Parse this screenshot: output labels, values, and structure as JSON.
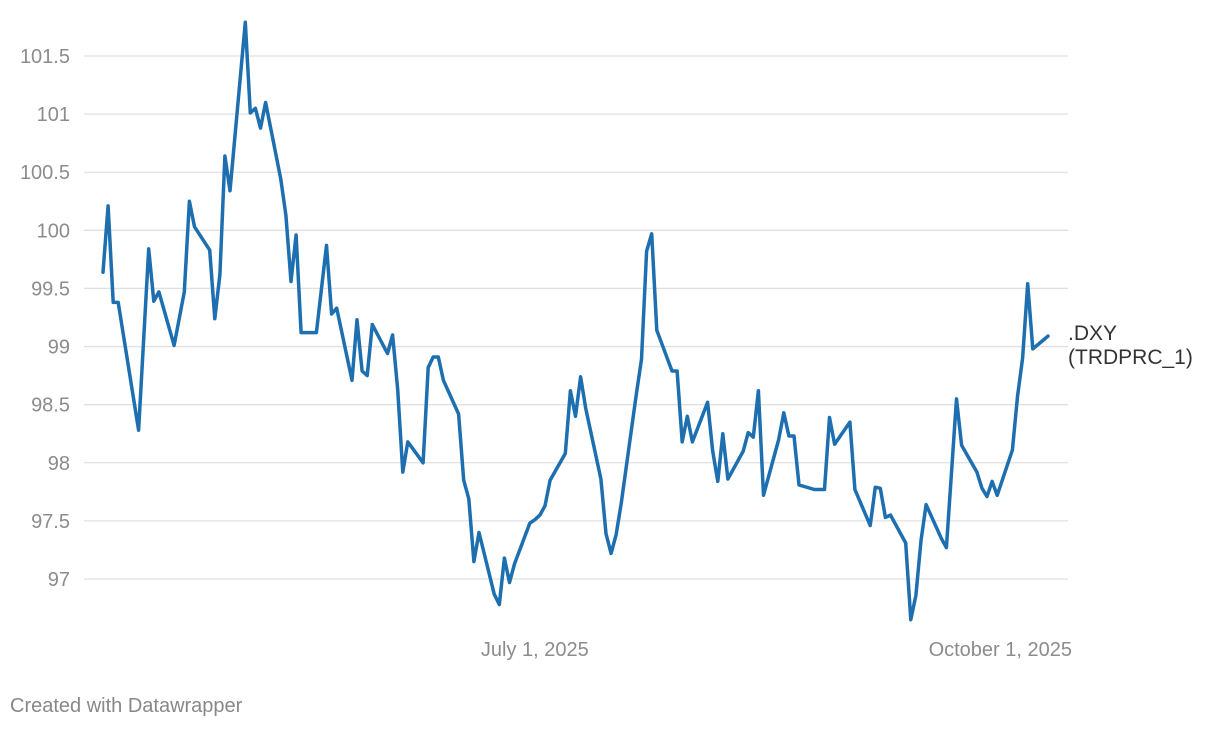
{
  "chart_data": {
    "type": "line",
    "title": "",
    "xlabel": "",
    "ylabel": "",
    "x_ticks": [
      "July 1, 2025",
      "October 1, 2025"
    ],
    "y_ticks": [
      "97",
      "97.5",
      "98",
      "98.5",
      "99",
      "99.5",
      "100",
      "100.5",
      "101",
      "101.5"
    ],
    "ylim": [
      96.7,
      101.85
    ],
    "grid": true,
    "series": [
      {
        "name": ".DXY (TRDPRC_1)",
        "label_lines": [
          ".DXY",
          "(TRDPRC_1)"
        ],
        "color": "#1d6fb0",
        "points": [
          [
            "2025-04-07",
            99.64
          ],
          [
            "2025-04-08",
            100.21
          ],
          [
            "2025-04-09",
            99.38
          ],
          [
            "2025-04-10",
            99.38
          ],
          [
            "2025-04-14",
            98.28
          ],
          [
            "2025-04-16",
            99.84
          ],
          [
            "2025-04-17",
            99.39
          ],
          [
            "2025-04-18",
            99.47
          ],
          [
            "2025-04-21",
            99.01
          ],
          [
            "2025-04-23",
            99.47
          ],
          [
            "2025-04-24",
            100.25
          ],
          [
            "2025-04-25",
            100.03
          ],
          [
            "2025-04-28",
            99.83
          ],
          [
            "2025-04-29",
            99.24
          ],
          [
            "2025-04-30",
            99.62
          ],
          [
            "2025-05-01",
            100.64
          ],
          [
            "2025-05-02",
            100.34
          ],
          [
            "2025-05-05",
            101.79
          ],
          [
            "2025-05-06",
            101.01
          ],
          [
            "2025-05-07",
            101.05
          ],
          [
            "2025-05-08",
            100.88
          ],
          [
            "2025-05-09",
            101.1
          ],
          [
            "2025-05-12",
            100.44
          ],
          [
            "2025-05-13",
            100.13
          ],
          [
            "2025-05-14",
            99.56
          ],
          [
            "2025-05-15",
            99.96
          ],
          [
            "2025-05-16",
            99.12
          ],
          [
            "2025-05-19",
            99.12
          ],
          [
            "2025-05-20",
            99.5
          ],
          [
            "2025-05-21",
            99.87
          ],
          [
            "2025-05-22",
            99.28
          ],
          [
            "2025-05-23",
            99.33
          ],
          [
            "2025-05-26",
            98.71
          ],
          [
            "2025-05-27",
            99.23
          ],
          [
            "2025-05-28",
            98.79
          ],
          [
            "2025-05-29",
            98.75
          ],
          [
            "2025-05-30",
            99.19
          ],
          [
            "2025-06-02",
            98.94
          ],
          [
            "2025-06-03",
            99.1
          ],
          [
            "2025-06-04",
            98.63
          ],
          [
            "2025-06-05",
            97.92
          ],
          [
            "2025-06-06",
            98.18
          ],
          [
            "2025-06-09",
            98.0
          ],
          [
            "2025-06-10",
            98.82
          ],
          [
            "2025-06-11",
            98.91
          ],
          [
            "2025-06-12",
            98.91
          ],
          [
            "2025-06-13",
            98.71
          ],
          [
            "2025-06-16",
            98.42
          ],
          [
            "2025-06-17",
            97.85
          ],
          [
            "2025-06-18",
            97.69
          ],
          [
            "2025-06-19",
            97.15
          ],
          [
            "2025-06-20",
            97.4
          ],
          [
            "2025-06-23",
            96.87
          ],
          [
            "2025-06-24",
            96.78
          ],
          [
            "2025-06-25",
            97.18
          ],
          [
            "2025-06-26",
            96.97
          ],
          [
            "2025-06-27",
            97.13
          ],
          [
            "2025-06-30",
            97.48
          ],
          [
            "2025-07-01",
            97.51
          ],
          [
            "2025-07-02",
            97.55
          ],
          [
            "2025-07-03",
            97.63
          ],
          [
            "2025-07-04",
            97.85
          ],
          [
            "2025-07-07",
            98.08
          ],
          [
            "2025-07-08",
            98.62
          ],
          [
            "2025-07-09",
            98.4
          ],
          [
            "2025-07-10",
            98.74
          ],
          [
            "2025-07-11",
            98.47
          ],
          [
            "2025-07-14",
            97.86
          ],
          [
            "2025-07-15",
            97.39
          ],
          [
            "2025-07-16",
            97.22
          ],
          [
            "2025-07-17",
            97.38
          ],
          [
            "2025-07-18",
            97.65
          ],
          [
            "2025-07-21",
            98.6
          ],
          [
            "2025-07-22",
            98.89
          ],
          [
            "2025-07-23",
            99.82
          ],
          [
            "2025-07-24",
            99.97
          ],
          [
            "2025-07-25",
            99.14
          ],
          [
            "2025-07-28",
            98.79
          ],
          [
            "2025-07-29",
            98.79
          ],
          [
            "2025-07-30",
            98.18
          ],
          [
            "2025-07-31",
            98.4
          ],
          [
            "2025-08-01",
            98.18
          ],
          [
            "2025-08-04",
            98.52
          ],
          [
            "2025-08-05",
            98.1
          ],
          [
            "2025-08-06",
            97.84
          ],
          [
            "2025-08-07",
            98.25
          ],
          [
            "2025-08-08",
            97.86
          ],
          [
            "2025-08-11",
            98.1
          ],
          [
            "2025-08-12",
            98.26
          ],
          [
            "2025-08-13",
            98.22
          ],
          [
            "2025-08-14",
            98.62
          ],
          [
            "2025-08-15",
            97.72
          ],
          [
            "2025-08-18",
            98.2
          ],
          [
            "2025-08-19",
            98.43
          ],
          [
            "2025-08-20",
            98.23
          ],
          [
            "2025-08-21",
            98.23
          ],
          [
            "2025-08-22",
            97.81
          ],
          [
            "2025-08-25",
            97.77
          ],
          [
            "2025-08-26",
            97.77
          ],
          [
            "2025-08-27",
            97.77
          ],
          [
            "2025-08-28",
            98.39
          ],
          [
            "2025-08-29",
            98.16
          ],
          [
            "2025-09-01",
            98.35
          ],
          [
            "2025-09-02",
            97.77
          ],
          [
            "2025-09-05",
            97.46
          ],
          [
            "2025-09-06",
            97.79
          ],
          [
            "2025-09-07",
            97.78
          ],
          [
            "2025-09-08",
            97.53
          ],
          [
            "2025-09-09",
            97.55
          ],
          [
            "2025-09-12",
            97.31
          ],
          [
            "2025-09-13",
            96.65
          ],
          [
            "2025-09-14",
            96.86
          ],
          [
            "2025-09-15",
            97.33
          ],
          [
            "2025-09-16",
            97.64
          ],
          [
            "2025-09-19",
            97.35
          ],
          [
            "2025-09-20",
            97.27
          ],
          [
            "2025-09-22",
            98.55
          ],
          [
            "2025-09-23",
            98.15
          ],
          [
            "2025-09-26",
            97.92
          ],
          [
            "2025-09-27",
            97.78
          ],
          [
            "2025-09-28",
            97.71
          ],
          [
            "2025-09-29",
            97.84
          ],
          [
            "2025-09-30",
            97.72
          ],
          [
            "2025-10-03",
            98.11
          ],
          [
            "2025-10-04",
            98.57
          ],
          [
            "2025-10-05",
            98.9
          ],
          [
            "2025-10-06",
            99.54
          ],
          [
            "2025-10-07",
            98.98
          ],
          [
            "2025-10-10",
            99.09
          ]
        ]
      }
    ]
  },
  "footer": {
    "credit": "Created with Datawrapper"
  }
}
